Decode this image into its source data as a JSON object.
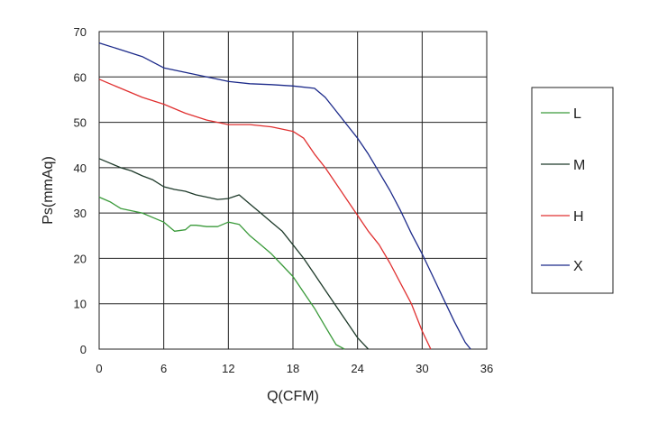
{
  "chart_data": {
    "type": "line",
    "xlabel": "Q(CFM)",
    "ylabel": "Ps(mmAq)",
    "xlim": [
      0,
      36
    ],
    "ylim": [
      0,
      70
    ],
    "xticks": [
      "0",
      "6",
      "12",
      "18",
      "24",
      "30",
      "36"
    ],
    "yticks": [
      "0",
      "10",
      "20",
      "30",
      "40",
      "50",
      "60",
      "70"
    ],
    "grid": true,
    "legend_position": "right",
    "series": [
      {
        "name": "L",
        "color": "#3a9a3a",
        "x": [
          0,
          1,
          2,
          3,
          4,
          5,
          6,
          7,
          8,
          8.5,
          9,
          10,
          11,
          12,
          13,
          14,
          15,
          16,
          17,
          18,
          19,
          20,
          21,
          22,
          22.8
        ],
        "y": [
          33.5,
          32.5,
          31,
          30.5,
          30,
          29,
          28,
          26,
          26.3,
          27.3,
          27.3,
          27,
          27,
          28,
          27.5,
          25,
          23,
          21,
          18.5,
          16,
          12.5,
          9,
          5,
          1,
          0
        ]
      },
      {
        "name": "M",
        "color": "#1e3a2a",
        "x": [
          0,
          1,
          2,
          3,
          4,
          5,
          6,
          7,
          8,
          9,
          10,
          11,
          12,
          13,
          14,
          15,
          16,
          17,
          18,
          19,
          20,
          21,
          22,
          23,
          24,
          25
        ],
        "y": [
          42,
          41,
          40,
          39.3,
          38.2,
          37.3,
          35.8,
          35.2,
          34.8,
          34,
          33.5,
          33,
          33.2,
          34,
          32,
          30,
          28,
          26,
          23,
          20,
          16.5,
          13,
          9.5,
          6,
          2.5,
          0
        ]
      },
      {
        "name": "H",
        "color": "#e03030",
        "x": [
          0,
          2,
          4,
          6,
          8,
          10,
          12,
          14,
          16,
          18,
          19,
          20,
          21,
          22,
          23,
          24,
          25,
          26,
          27,
          28,
          29,
          30,
          30.8
        ],
        "y": [
          59.5,
          57.5,
          55.5,
          54,
          52,
          50.5,
          49.5,
          49.5,
          49,
          48,
          46.5,
          43,
          40,
          36.5,
          33,
          29.5,
          26,
          23,
          19,
          14.5,
          10,
          4,
          0
        ]
      },
      {
        "name": "X",
        "color": "#1c2a8a",
        "x": [
          0,
          2,
          4,
          6,
          8,
          10,
          12,
          14,
          16,
          18,
          20,
          21,
          22,
          23,
          24,
          25,
          26,
          27,
          28,
          29,
          30,
          31,
          32,
          33,
          34,
          34.5
        ],
        "y": [
          67.5,
          66,
          64.5,
          62,
          61,
          60,
          59,
          58.5,
          58.3,
          58,
          57.5,
          55.5,
          52.5,
          49.5,
          46.5,
          43,
          39,
          35,
          30.5,
          25.5,
          21,
          16,
          11,
          6,
          1.5,
          0
        ]
      }
    ]
  }
}
